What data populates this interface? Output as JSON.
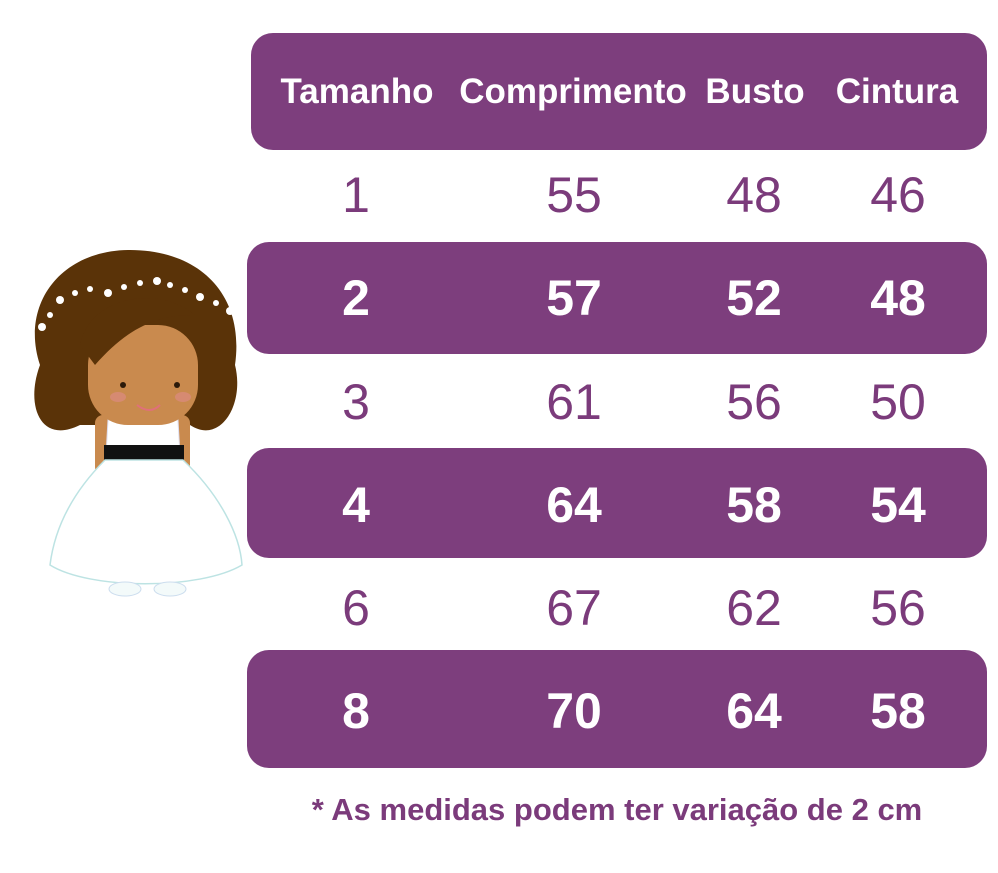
{
  "colors": {
    "accent": "#7d3e7d",
    "text_plain": "#7b3b7b"
  },
  "table": {
    "headers": [
      "Tamanho",
      "Comprimento",
      "Busto",
      "Cintura"
    ],
    "rows": [
      [
        "1",
        "55",
        "48",
        "46"
      ],
      [
        "2",
        "57",
        "52",
        "48"
      ],
      [
        "3",
        "61",
        "56",
        "50"
      ],
      [
        "4",
        "64",
        "58",
        "54"
      ],
      [
        "6",
        "67",
        "62",
        "56"
      ],
      [
        "8",
        "70",
        "64",
        "58"
      ]
    ]
  },
  "note": "* As medidas podem ter variação de 2 cm",
  "illustration": "girl-in-white-dress"
}
